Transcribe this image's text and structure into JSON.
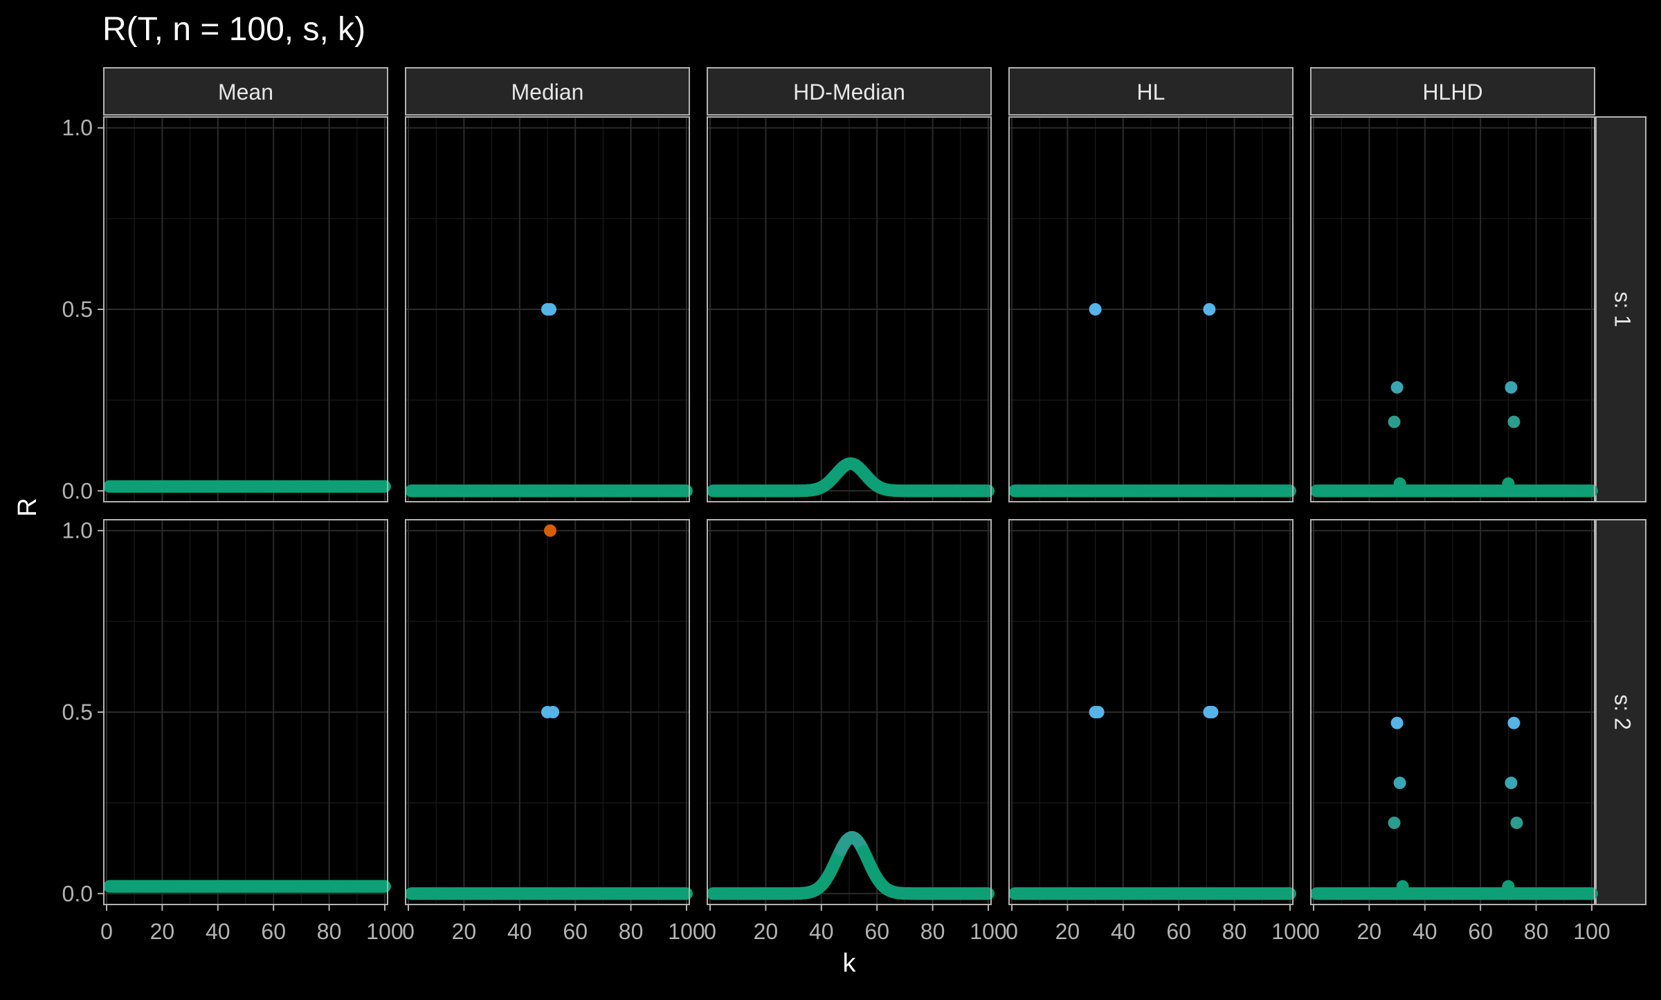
{
  "chart_data": {
    "type": "scatter",
    "title": "R(T, n = 100, s, k)",
    "xlabel": "k",
    "ylabel": "R",
    "xlim": [
      -1,
      101
    ],
    "ylim": [
      -0.03,
      1.03
    ],
    "x_ticks": [
      0,
      20,
      40,
      60,
      80,
      100
    ],
    "x_tick_labels": [
      "0",
      "20",
      "40",
      "60",
      "80",
      "100"
    ],
    "y_ticks": [
      0,
      0.5,
      1
    ],
    "y_tick_labels": [
      "0.0",
      "0.5",
      "1.0"
    ],
    "grid": true,
    "legend": "none",
    "background": "#000000",
    "panel_background": "#000000",
    "strip_background": "#262626",
    "text_color": "#ffffff",
    "tick_label_color": "#b3b3b3",
    "colors": {
      "low": "#0e9f76",
      "mid_low": "#2a9d8f",
      "mid": "#56b4e9",
      "high": "#d55e00"
    },
    "columns": [
      "Mean",
      "Median",
      "HD-Median",
      "HL",
      "HLHD"
    ],
    "rows": [
      "s: 1",
      "s: 2"
    ],
    "panels": [
      {
        "column": "Mean",
        "row": "s: 1",
        "series": [
          {
            "kind": "constant",
            "value": 0.012,
            "x_range": [
              1,
              100
            ]
          }
        ],
        "points": []
      },
      {
        "column": "Median",
        "row": "s: 1",
        "series": [
          {
            "kind": "constant",
            "value": 0.0,
            "x_range": [
              1,
              100
            ]
          }
        ],
        "points": [
          {
            "x": 50,
            "y": 0.5
          },
          {
            "x": 51,
            "y": 0.5
          }
        ]
      },
      {
        "column": "HD-Median",
        "row": "s: 1",
        "series": [
          {
            "kind": "gauss",
            "base": 0.0,
            "peak": 0.075,
            "center": 50.5,
            "width": 5.2,
            "x_range": [
              1,
              100
            ]
          }
        ],
        "points": []
      },
      {
        "column": "HL",
        "row": "s: 1",
        "series": [
          {
            "kind": "constant",
            "value": 0.0,
            "x_range": [
              1,
              100
            ]
          }
        ],
        "points": [
          {
            "x": 30,
            "y": 0.5
          },
          {
            "x": 71,
            "y": 0.5
          }
        ]
      },
      {
        "column": "HLHD",
        "row": "s: 1",
        "series": [
          {
            "kind": "constant",
            "value": 0.0,
            "x_range": [
              1,
              100
            ]
          }
        ],
        "points": [
          {
            "x": 29,
            "y": 0.19
          },
          {
            "x": 30,
            "y": 0.285
          },
          {
            "x": 31,
            "y": 0.02
          },
          {
            "x": 70,
            "y": 0.02
          },
          {
            "x": 71,
            "y": 0.285
          },
          {
            "x": 72,
            "y": 0.19
          }
        ]
      },
      {
        "column": "Mean",
        "row": "s: 2",
        "series": [
          {
            "kind": "constant",
            "value": 0.02,
            "x_range": [
              1,
              100
            ]
          }
        ],
        "points": []
      },
      {
        "column": "Median",
        "row": "s: 2",
        "series": [
          {
            "kind": "constant",
            "value": 0.0,
            "x_range": [
              1,
              100
            ]
          }
        ],
        "points": [
          {
            "x": 50,
            "y": 0.5
          },
          {
            "x": 51,
            "y": 1.0
          },
          {
            "x": 52,
            "y": 0.5
          }
        ]
      },
      {
        "column": "HD-Median",
        "row": "s: 2",
        "series": [
          {
            "kind": "gauss",
            "base": 0.0,
            "peak": 0.155,
            "center": 51,
            "width": 5.6,
            "x_range": [
              1,
              100
            ]
          }
        ],
        "points": []
      },
      {
        "column": "HL",
        "row": "s: 2",
        "series": [
          {
            "kind": "constant",
            "value": 0.0,
            "x_range": [
              1,
              100
            ]
          }
        ],
        "points": [
          {
            "x": 30,
            "y": 0.5
          },
          {
            "x": 31,
            "y": 0.5
          },
          {
            "x": 71,
            "y": 0.5
          },
          {
            "x": 72,
            "y": 0.5
          }
        ]
      },
      {
        "column": "HLHD",
        "row": "s: 2",
        "series": [
          {
            "kind": "constant",
            "value": 0.0,
            "x_range": [
              1,
              100
            ]
          }
        ],
        "points": [
          {
            "x": 29,
            "y": 0.195
          },
          {
            "x": 30,
            "y": 0.47
          },
          {
            "x": 31,
            "y": 0.305
          },
          {
            "x": 32,
            "y": 0.02
          },
          {
            "x": 70,
            "y": 0.02
          },
          {
            "x": 71,
            "y": 0.305
          },
          {
            "x": 72,
            "y": 0.47
          },
          {
            "x": 73,
            "y": 0.195
          }
        ]
      }
    ]
  }
}
